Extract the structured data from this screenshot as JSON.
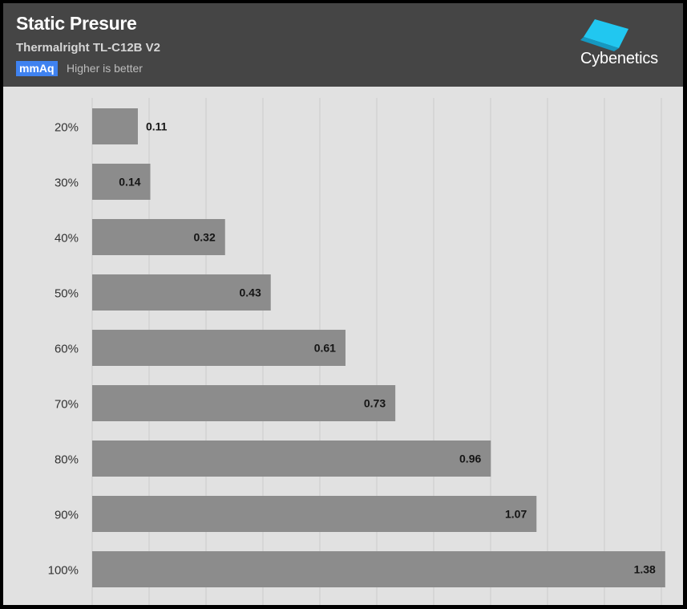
{
  "header": {
    "title": "Static Presure",
    "subtitle": "Thermalright TL-C12B V2",
    "unit": "mmAq",
    "hint": "Higher is better",
    "brand": "Cybenetics"
  },
  "colors": {
    "header_bg": "#454545",
    "plot_bg": "#e1e1e1",
    "bar": "#8c8c8c",
    "badge": "#3f82f0",
    "logo_accent": "#21c7f0",
    "gridline": "#cbcbcb"
  },
  "chart_data": {
    "type": "bar",
    "orientation": "horizontal",
    "categories": [
      "20%",
      "30%",
      "40%",
      "50%",
      "60%",
      "70%",
      "80%",
      "90%",
      "100%"
    ],
    "values": [
      0.11,
      0.14,
      0.32,
      0.43,
      0.61,
      0.73,
      0.96,
      1.07,
      1.38
    ],
    "value_labels": [
      "0.11",
      "0.14",
      "0.32",
      "0.43",
      "0.61",
      "0.73",
      "0.96",
      "1.07",
      "1.38"
    ],
    "xlim": [
      0,
      1.4
    ],
    "grid": true,
    "legend": "none"
  }
}
